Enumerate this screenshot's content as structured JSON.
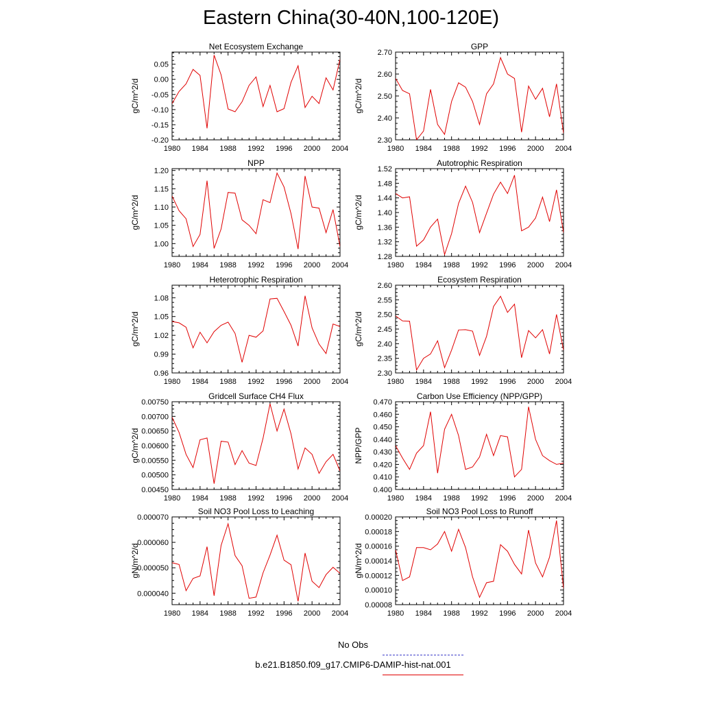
{
  "title": "Eastern China(30-40N,100-120E)",
  "legend": {
    "obs_label": "No Obs",
    "obs_color": "#3b3bc8",
    "model_label": "b.e21.B1850.f09_g17.CMIP6-DAMIP-hist-nat.001",
    "model_color": "#e00000"
  },
  "chart_data": [
    {
      "type": "line",
      "title": "Net Ecosystem Exchange",
      "ylabel": "gC/m^2/d",
      "xlim": [
        1980,
        2004
      ],
      "xticks": [
        1980,
        1984,
        1988,
        1992,
        1996,
        2000,
        2004
      ],
      "ylim": [
        -0.2,
        0.09
      ],
      "yticks": [
        -0.2,
        -0.15,
        -0.1,
        -0.05,
        0.0,
        0.05
      ],
      "ydec": 2,
      "x": [
        1980,
        1981,
        1982,
        1983,
        1984,
        1985,
        1986,
        1987,
        1988,
        1989,
        1990,
        1991,
        1992,
        1993,
        1994,
        1995,
        1996,
        1997,
        1998,
        1999,
        2000,
        2001,
        2002,
        2003,
        2004
      ],
      "y": [
        -0.08,
        -0.04,
        -0.015,
        0.033,
        0.013,
        -0.162,
        0.08,
        0.015,
        -0.098,
        -0.107,
        -0.074,
        -0.02,
        0.008,
        -0.09,
        -0.02,
        -0.107,
        -0.097,
        -0.01,
        0.045,
        -0.093,
        -0.056,
        -0.08,
        0.005,
        -0.035,
        0.067
      ]
    },
    {
      "type": "line",
      "title": "GPP",
      "ylabel": "gC/m^2/d",
      "xlim": [
        1980,
        2004
      ],
      "xticks": [
        1980,
        1984,
        1988,
        1992,
        1996,
        2000,
        2004
      ],
      "ylim": [
        2.3,
        2.7
      ],
      "yticks": [
        2.3,
        2.4,
        2.5,
        2.6,
        2.7
      ],
      "ydec": 2,
      "x": [
        1980,
        1981,
        1982,
        1983,
        1984,
        1985,
        1986,
        1987,
        1988,
        1989,
        1990,
        1991,
        1992,
        1993,
        1994,
        1995,
        1996,
        1997,
        1998,
        1999,
        2000,
        2001,
        2002,
        2003,
        2004
      ],
      "y": [
        2.58,
        2.525,
        2.51,
        2.3,
        2.34,
        2.53,
        2.37,
        2.325,
        2.475,
        2.56,
        2.54,
        2.475,
        2.37,
        2.51,
        2.555,
        2.675,
        2.6,
        2.58,
        2.335,
        2.545,
        2.485,
        2.535,
        2.405,
        2.555,
        2.33
      ]
    },
    {
      "type": "line",
      "title": "NPP",
      "ylabel": "gC/m^2/d",
      "xlim": [
        1980,
        2004
      ],
      "xticks": [
        1980,
        1984,
        1988,
        1992,
        1996,
        2000,
        2004
      ],
      "ylim": [
        0.965,
        1.205
      ],
      "yticks": [
        1.0,
        1.05,
        1.1,
        1.15,
        1.2
      ],
      "ydec": 2,
      "x": [
        1980,
        1981,
        1982,
        1983,
        1984,
        1985,
        1986,
        1987,
        1988,
        1989,
        1990,
        1991,
        1992,
        1993,
        1994,
        1995,
        1996,
        1997,
        1998,
        1999,
        2000,
        2001,
        2002,
        2003,
        2004
      ],
      "y": [
        1.13,
        1.09,
        1.068,
        0.992,
        1.025,
        1.172,
        0.987,
        1.04,
        1.14,
        1.138,
        1.065,
        1.05,
        1.027,
        1.12,
        1.112,
        1.193,
        1.155,
        1.082,
        0.985,
        1.185,
        1.1,
        1.097,
        1.03,
        1.093,
        0.992
      ]
    },
    {
      "type": "line",
      "title": "Autotrophic Respiration",
      "ylabel": "gC/m^2/d",
      "xlim": [
        1980,
        2004
      ],
      "xticks": [
        1980,
        1984,
        1988,
        1992,
        1996,
        2000,
        2004
      ],
      "ylim": [
        1.28,
        1.52
      ],
      "yticks": [
        1.28,
        1.32,
        1.36,
        1.4,
        1.44,
        1.48,
        1.52
      ],
      "ydec": 2,
      "x": [
        1980,
        1981,
        1982,
        1983,
        1984,
        1985,
        1986,
        1987,
        1988,
        1989,
        1990,
        1991,
        1992,
        1993,
        1994,
        1995,
        1996,
        1997,
        1998,
        1999,
        2000,
        2001,
        2002,
        2003,
        2004
      ],
      "y": [
        1.452,
        1.44,
        1.443,
        1.308,
        1.325,
        1.36,
        1.382,
        1.285,
        1.342,
        1.425,
        1.472,
        1.428,
        1.345,
        1.398,
        1.45,
        1.483,
        1.452,
        1.502,
        1.35,
        1.36,
        1.385,
        1.442,
        1.375,
        1.462,
        1.345
      ]
    },
    {
      "type": "line",
      "title": "Heterotrophic Respiration",
      "ylabel": "gC/m^2/d",
      "xlim": [
        1980,
        2004
      ],
      "xticks": [
        1980,
        1984,
        1988,
        1992,
        1996,
        2000,
        2004
      ],
      "ylim": [
        0.96,
        1.1
      ],
      "yticks": [
        0.96,
        0.99,
        1.02,
        1.05,
        1.08
      ],
      "ydec": 2,
      "x": [
        1980,
        1981,
        1982,
        1983,
        1984,
        1985,
        1986,
        1987,
        1988,
        1989,
        1990,
        1991,
        1992,
        1993,
        1994,
        1995,
        1996,
        1997,
        1998,
        1999,
        2000,
        2001,
        2002,
        2003,
        2004
      ],
      "y": [
        1.042,
        1.04,
        1.033,
        1.0,
        1.025,
        1.008,
        1.026,
        1.036,
        1.041,
        1.023,
        0.977,
        1.02,
        1.017,
        1.027,
        1.078,
        1.079,
        1.058,
        1.036,
        1.003,
        1.083,
        1.032,
        1.006,
        0.991,
        1.038,
        1.034
      ]
    },
    {
      "type": "line",
      "title": "Ecosystem Respiration",
      "ylabel": "gC/m^2/d",
      "xlim": [
        1980,
        2004
      ],
      "xticks": [
        1980,
        1984,
        1988,
        1992,
        1996,
        2000,
        2004
      ],
      "ylim": [
        2.3,
        2.6
      ],
      "yticks": [
        2.3,
        2.35,
        2.4,
        2.45,
        2.5,
        2.55,
        2.6
      ],
      "ydec": 2,
      "x": [
        1980,
        1981,
        1982,
        1983,
        1984,
        1985,
        1986,
        1987,
        1988,
        1989,
        1990,
        1991,
        1992,
        1993,
        1994,
        1995,
        1996,
        1997,
        1998,
        1999,
        2000,
        2001,
        2002,
        2003,
        2004
      ],
      "y": [
        2.495,
        2.478,
        2.477,
        2.31,
        2.35,
        2.365,
        2.41,
        2.318,
        2.378,
        2.447,
        2.448,
        2.443,
        2.36,
        2.425,
        2.527,
        2.562,
        2.507,
        2.535,
        2.352,
        2.445,
        2.42,
        2.448,
        2.365,
        2.5,
        2.378
      ]
    },
    {
      "type": "line",
      "title": "Gridcell Surface CH4 Flux",
      "ylabel": "gC/m^2/d",
      "xlim": [
        1980,
        2004
      ],
      "xticks": [
        1980,
        1984,
        1988,
        1992,
        1996,
        2000,
        2004
      ],
      "ylim": [
        0.0045,
        0.0075
      ],
      "yticks": [
        0.0045,
        0.005,
        0.0055,
        0.006,
        0.0065,
        0.007,
        0.0075
      ],
      "ydec": 5,
      "x": [
        1980,
        1981,
        1982,
        1983,
        1984,
        1985,
        1986,
        1987,
        1988,
        1989,
        1990,
        1991,
        1992,
        1993,
        1994,
        1995,
        1996,
        1997,
        1998,
        1999,
        2000,
        2001,
        2002,
        2003,
        2004
      ],
      "y": [
        0.00697,
        0.00645,
        0.0057,
        0.00525,
        0.0062,
        0.00626,
        0.0047,
        0.00615,
        0.00612,
        0.00535,
        0.00583,
        0.0054,
        0.00532,
        0.00625,
        0.00743,
        0.0065,
        0.00725,
        0.0064,
        0.0052,
        0.00592,
        0.0057,
        0.00505,
        0.00545,
        0.0057,
        0.00513
      ]
    },
    {
      "type": "line",
      "title": "Carbon Use Efficiency (NPP/GPP)",
      "ylabel": "NPP/GPP",
      "xlim": [
        1980,
        2004
      ],
      "xticks": [
        1980,
        1984,
        1988,
        1992,
        1996,
        2000,
        2004
      ],
      "ylim": [
        0.4,
        0.47
      ],
      "yticks": [
        0.4,
        0.41,
        0.42,
        0.43,
        0.44,
        0.45,
        0.46,
        0.47
      ],
      "ydec": 3,
      "x": [
        1980,
        1981,
        1982,
        1983,
        1984,
        1985,
        1986,
        1987,
        1988,
        1989,
        1990,
        1991,
        1992,
        1993,
        1994,
        1995,
        1996,
        1997,
        1998,
        1999,
        2000,
        2001,
        2002,
        2003,
        2004
      ],
      "y": [
        0.435,
        0.425,
        0.416,
        0.429,
        0.435,
        0.462,
        0.413,
        0.448,
        0.46,
        0.443,
        0.416,
        0.418,
        0.426,
        0.444,
        0.427,
        0.443,
        0.442,
        0.41,
        0.416,
        0.466,
        0.44,
        0.427,
        0.423,
        0.42,
        0.421
      ]
    },
    {
      "type": "line",
      "title": "Soil NO3 Pool Loss to Leaching",
      "ylabel": "gN/m^2/d",
      "xlim": [
        1980,
        2004
      ],
      "xticks": [
        1980,
        1984,
        1988,
        1992,
        1996,
        2000,
        2004
      ],
      "ylim": [
        3.55e-05,
        7e-05
      ],
      "yticks": [
        4e-05,
        5e-05,
        6e-05,
        7e-05
      ],
      "ydec": 6,
      "x": [
        1980,
        1981,
        1982,
        1983,
        1984,
        1985,
        1986,
        1987,
        1988,
        1989,
        1990,
        1991,
        1992,
        1993,
        1994,
        1995,
        1996,
        1997,
        1998,
        1999,
        2000,
        2001,
        2002,
        2003,
        2004
      ],
      "y": [
        5.2e-05,
        5.13e-05,
        4.1e-05,
        4.58e-05,
        4.68e-05,
        5.83e-05,
        3.9e-05,
        5.88e-05,
        6.73e-05,
        5.48e-05,
        5.08e-05,
        3.8e-05,
        3.85e-05,
        4.8e-05,
        5.5e-05,
        6.28e-05,
        5.3e-05,
        5.12e-05,
        3.68e-05,
        5.58e-05,
        4.47e-05,
        4.22e-05,
        4.73e-05,
        5.02e-05,
        4.78e-05
      ]
    },
    {
      "type": "line",
      "title": "Soil NO3 Pool Loss to Runoff",
      "ylabel": "gN/m^2/d",
      "xlim": [
        1980,
        2004
      ],
      "xticks": [
        1980,
        1984,
        1988,
        1992,
        1996,
        2000,
        2004
      ],
      "ylim": [
        8e-05,
        0.0002
      ],
      "yticks": [
        8e-05,
        0.0001,
        0.00012,
        0.00014,
        0.00016,
        0.00018,
        0.0002
      ],
      "ydec": 5,
      "x": [
        1980,
        1981,
        1982,
        1983,
        1984,
        1985,
        1986,
        1987,
        1988,
        1989,
        1990,
        1991,
        1992,
        1993,
        1994,
        1995,
        1996,
        1997,
        1998,
        1999,
        2000,
        2001,
        2002,
        2003,
        2004
      ],
      "y": [
        0.000155,
        0.000113,
        0.000118,
        0.000158,
        0.000158,
        0.000155,
        0.000163,
        0.00018,
        0.000153,
        0.000183,
        0.000158,
        0.000118,
        9e-05,
        0.00011,
        0.000112,
        0.000162,
        0.000153,
        0.000135,
        0.000122,
        0.000182,
        0.000137,
        0.000118,
        0.000145,
        0.000195,
        0.000102
      ]
    }
  ]
}
